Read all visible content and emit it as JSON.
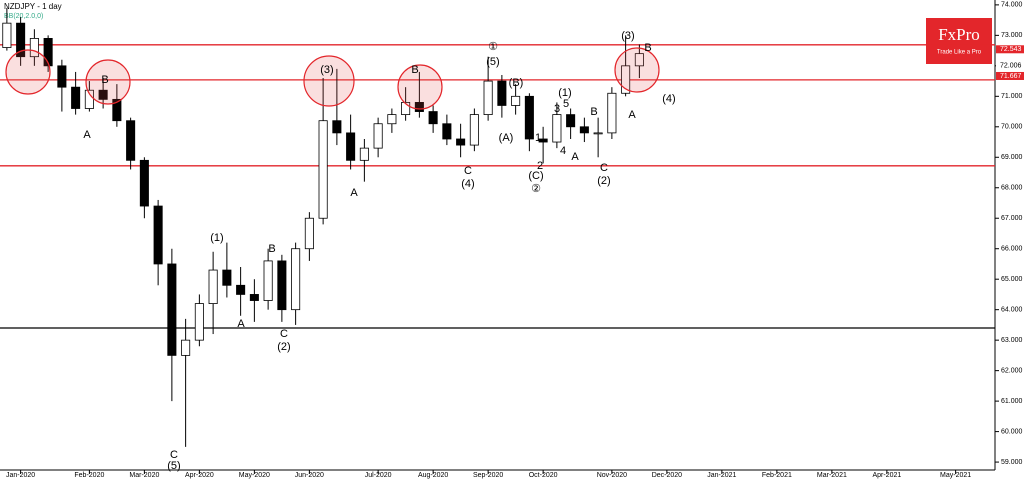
{
  "chart_data": {
    "type": "candlestick",
    "title": "NZDJPY - 1 day",
    "subtitle": "BB(20,2.0,0)",
    "brand": "FxPro",
    "tagline": "Trade Like a Pro",
    "categories": [
      null,
      "Jan-2020",
      null,
      null,
      null,
      null,
      "Feb-2020",
      null,
      null,
      null,
      "Mar-2020",
      null,
      null,
      null,
      "Apr-2020",
      null,
      null,
      null,
      "May-2020",
      null,
      null,
      null,
      "Jun-2020",
      null,
      null,
      null,
      null,
      "Jul-2020",
      null,
      null,
      null,
      "Aug-2020",
      null,
      null,
      null,
      "Sep-2020",
      null,
      null,
      null,
      "Oct-2020",
      null,
      null,
      null,
      null,
      "Nov-2020",
      null,
      null,
      null,
      "Dec-2020",
      null,
      null,
      null,
      "Jan-2021",
      null,
      null,
      null,
      "Feb-2021",
      null,
      null,
      null,
      "Mar-2021",
      null,
      null,
      null,
      "Apr-2021",
      null,
      null,
      null,
      null,
      "May-2021",
      null,
      null
    ],
    "open": [
      72.6,
      73.4,
      72.3,
      72.9,
      72.0,
      71.3,
      70.6,
      71.2,
      70.9,
      70.2,
      68.9,
      67.4,
      65.5,
      62.5,
      63.0,
      64.2,
      65.3,
      64.8,
      64.5,
      64.3,
      65.6,
      64.0,
      66.0,
      67.0,
      70.2,
      69.8,
      68.9,
      69.3,
      70.1,
      70.4,
      70.8,
      70.5,
      70.1,
      69.6,
      69.4,
      70.4,
      71.5,
      70.7,
      71.0,
      69.6,
      69.5,
      70.4,
      70.0,
      69.8,
      69.8,
      71.1,
      72.0,
      null,
      null,
      null,
      null,
      null,
      null,
      null,
      null,
      null,
      null,
      null,
      null,
      null,
      null,
      null,
      null,
      null,
      null,
      null,
      null,
      null,
      null,
      null,
      null,
      null
    ],
    "high": [
      73.9,
      73.6,
      73.2,
      73.0,
      72.2,
      71.8,
      71.5,
      71.6,
      71.4,
      70.3,
      69.0,
      67.6,
      66.0,
      63.7,
      64.5,
      65.9,
      66.2,
      65.4,
      65.0,
      66.0,
      65.8,
      66.2,
      67.2,
      71.6,
      71.9,
      70.4,
      69.6,
      70.3,
      70.6,
      71.3,
      71.8,
      70.7,
      70.4,
      70.1,
      70.6,
      72.3,
      71.7,
      71.4,
      71.1,
      70.0,
      70.8,
      70.6,
      70.3,
      70.3,
      71.3,
      73.0,
      72.7,
      null,
      null,
      null,
      null,
      null,
      null,
      null,
      null,
      null,
      null,
      null,
      null,
      null,
      null,
      null,
      null,
      null,
      null,
      null,
      null,
      null,
      null,
      null,
      null,
      null
    ],
    "low": [
      72.5,
      72.0,
      72.0,
      71.8,
      70.5,
      70.4,
      70.5,
      70.6,
      70.0,
      68.6,
      67.0,
      64.8,
      61.0,
      59.5,
      62.8,
      63.2,
      64.4,
      63.8,
      63.6,
      64.0,
      63.6,
      63.5,
      65.6,
      66.8,
      69.4,
      68.6,
      68.2,
      69.0,
      69.8,
      70.2,
      70.3,
      69.8,
      69.4,
      69.0,
      69.2,
      70.2,
      70.3,
      70.4,
      69.2,
      68.8,
      69.3,
      69.6,
      69.5,
      69.0,
      69.6,
      71.0,
      71.6,
      null,
      null,
      null,
      null,
      null,
      null,
      null,
      null,
      null,
      null,
      null,
      null,
      null,
      null,
      null,
      null,
      null,
      null,
      null,
      null,
      null,
      null,
      null,
      null,
      null
    ],
    "close": [
      73.4,
      72.3,
      72.9,
      72.0,
      71.3,
      70.6,
      71.2,
      70.9,
      70.2,
      68.9,
      67.4,
      65.5,
      62.5,
      63.0,
      64.2,
      65.3,
      64.8,
      64.5,
      64.3,
      65.6,
      64.0,
      66.0,
      67.0,
      70.2,
      69.8,
      68.9,
      69.3,
      70.1,
      70.4,
      70.8,
      70.5,
      70.1,
      69.6,
      69.4,
      70.4,
      71.5,
      70.7,
      71.0,
      69.6,
      69.5,
      70.4,
      70.0,
      69.8,
      69.8,
      71.1,
      72.0,
      72.4,
      null,
      null,
      null,
      null,
      null,
      null,
      null,
      null,
      null,
      null,
      null,
      null,
      null,
      null,
      null,
      null,
      null,
      null,
      null,
      null,
      null,
      null,
      null,
      null,
      null
    ],
    "ylim": [
      58.74,
      74.16
    ],
    "yticks": [
      {
        "value": 59,
        "label": "59.000"
      },
      {
        "value": 60,
        "label": "60.000"
      },
      {
        "value": 61,
        "label": "61.000"
      },
      {
        "value": 62,
        "label": "62.000"
      },
      {
        "value": 63,
        "label": "63.000"
      },
      {
        "value": 64,
        "label": "64.000"
      },
      {
        "value": 65,
        "label": "65.000"
      },
      {
        "value": 66,
        "label": "66.000"
      },
      {
        "value": 67,
        "label": "67.000"
      },
      {
        "value": 68,
        "label": "68.000"
      },
      {
        "value": 69,
        "label": "69.000"
      },
      {
        "value": 70,
        "label": "70.000"
      },
      {
        "value": 71,
        "label": "71.000"
      },
      {
        "value": 72,
        "label": "72.000"
      },
      {
        "value": 73,
        "label": "73.000"
      },
      {
        "value": 74,
        "label": "74.000"
      }
    ],
    "price_labels": [
      {
        "value": 72.543,
        "label": "72.543",
        "color": "#e3262b"
      },
      {
        "value": 72.006,
        "label": "72.006",
        "color": "#ffffff"
      },
      {
        "value": 71.667,
        "label": "71.667",
        "color": "#e3262b"
      }
    ],
    "hlines": [
      {
        "value": 72.69,
        "color": "#e3262b"
      },
      {
        "value": 71.54,
        "color": "#e3262b"
      },
      {
        "value": 68.72,
        "color": "#e3262b"
      },
      {
        "value": 63.4,
        "color": "#000000"
      }
    ],
    "annotations": [
      "B",
      "A",
      "(1)",
      "A",
      "B",
      "C",
      "(2)",
      "C",
      "(5)",
      "(3)",
      "A",
      "B",
      "C",
      "(4)",
      "①",
      "(5)",
      "(B)",
      "(A)",
      "(C)",
      "②",
      "1",
      "2",
      "3",
      "(1)",
      "5",
      "4",
      "A",
      "B",
      "C",
      "(2)",
      "(3)",
      "A",
      "B",
      "(4)"
    ]
  }
}
